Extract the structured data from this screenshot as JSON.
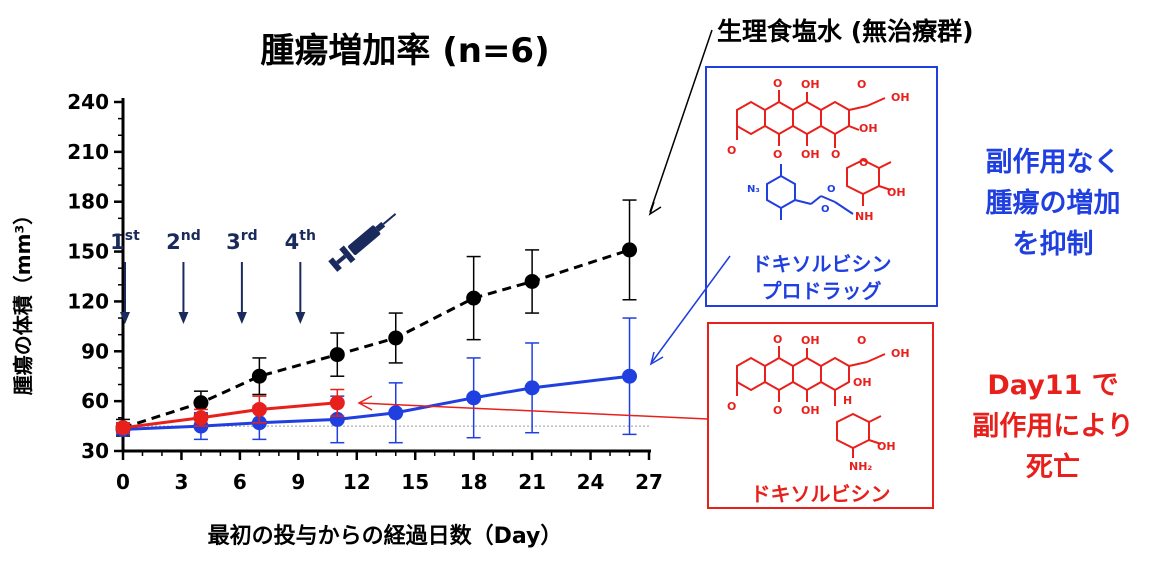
{
  "colors": {
    "saline": "#000000",
    "prodrug": "#1f3fe0",
    "doxorubicin": "#e8201c",
    "arrow_navy": "#1b2a5c"
  },
  "labels": {
    "saline_label": "生理食塩水 (無治療群)",
    "prodrug_name_line1": "ドキソルビシン",
    "prodrug_name_line2": "プロドラッグ",
    "prodrug_note_line1": "副作用なく",
    "prodrug_note_line2": "腫瘍の増加",
    "prodrug_note_line3": "を抑制",
    "doxorubicin_name": "ドキソルビシン",
    "doxorubicin_note_line1": "Day11 で",
    "doxorubicin_note_line2": "副作用により",
    "doxorubicin_note_line3": "死亡",
    "syringe_icon": "syringe-icon"
  },
  "dose_markers": [
    {
      "num": "1",
      "suffix": "st",
      "day": 0
    },
    {
      "num": "2",
      "suffix": "nd",
      "day": 3
    },
    {
      "num": "3",
      "suffix": "rd",
      "day": 6
    },
    {
      "num": "4",
      "suffix": "th",
      "day": 9
    }
  ],
  "chart_data": {
    "type": "line",
    "title": "腫瘍増加率 (n=6)",
    "xlabel": "最初の投与からの経過日数（Day）",
    "ylabel": "腫瘍の体積（mm³）",
    "xlim": [
      0,
      27
    ],
    "ylim": [
      30,
      240
    ],
    "xticks": [
      0,
      3,
      6,
      9,
      12,
      15,
      18,
      21,
      24,
      27
    ],
    "yticks": [
      30,
      60,
      90,
      120,
      150,
      180,
      210,
      240
    ],
    "baseline": 45,
    "series": [
      {
        "name": "生理食塩水 (無治療群)",
        "key": "saline",
        "style": "dashed",
        "x": [
          0,
          4,
          7,
          11,
          14,
          18,
          21,
          26
        ],
        "y": [
          44,
          59,
          75,
          88,
          98,
          122,
          132,
          151
        ],
        "err": [
          5,
          7,
          11,
          13,
          15,
          25,
          19,
          30
        ]
      },
      {
        "name": "ドキソルビシンプロドラッグ",
        "key": "prodrug",
        "style": "solid",
        "x": [
          0,
          4,
          7,
          11,
          14,
          18,
          21,
          26
        ],
        "y": [
          43,
          45,
          47,
          49,
          53,
          62,
          68,
          75
        ],
        "err": [
          3,
          8,
          10,
          14,
          18,
          24,
          27,
          35
        ]
      },
      {
        "name": "ドキソルビシン",
        "key": "doxorubicin",
        "style": "solid",
        "x": [
          0,
          4,
          7,
          11
        ],
        "y": [
          44,
          50,
          55,
          59
        ],
        "err": [
          3,
          5,
          8,
          8
        ]
      }
    ]
  }
}
